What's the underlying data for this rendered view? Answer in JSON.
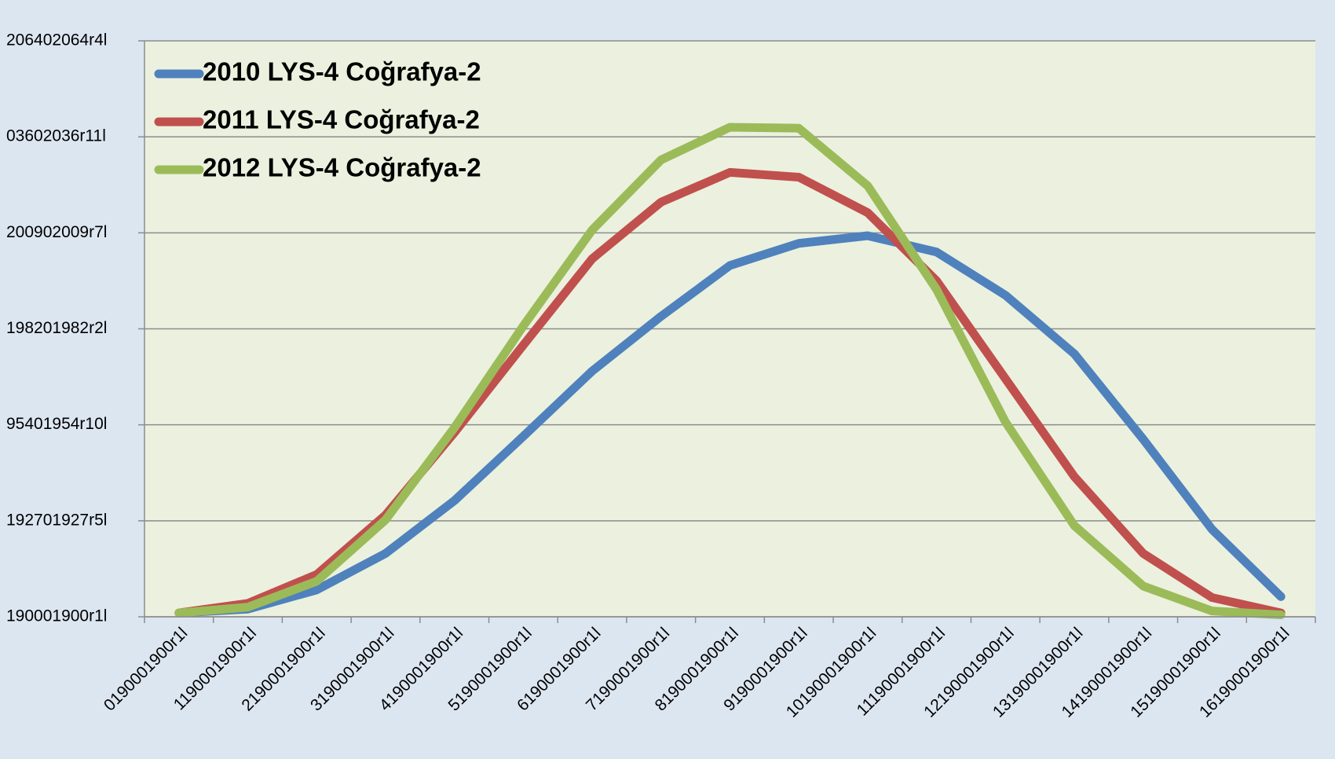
{
  "chart_data": {
    "type": "line",
    "categories": [
      "0190001900r1l",
      "1190001900r1l",
      "2190001900r1l",
      "3190001900r1l",
      "4190001900r1l",
      "5190001900r1l",
      "6190001900r1l",
      "7190001900r1l",
      "8190001900r1l",
      "9190001900r1l",
      "10190001900r1l",
      "11190001900r1l",
      "12190001900r1l",
      "13190001900r1l",
      "14190001900r1l",
      "15190001900r1l",
      "16190001900r1l"
    ],
    "series": [
      {
        "name": "2010 LYS-4 Coğrafya-2",
        "color": "#4f81bd",
        "values": [
          0.04,
          0.08,
          0.28,
          0.66,
          1.21,
          1.88,
          2.56,
          3.13,
          3.66,
          3.89,
          3.97,
          3.8,
          3.35,
          2.74,
          1.85,
          0.91,
          0.21
        ]
      },
      {
        "name": "2011 LYS-4 Coğrafya-2",
        "color": "#c0504d",
        "values": [
          0.04,
          0.14,
          0.44,
          1.06,
          1.92,
          2.83,
          3.73,
          4.32,
          4.63,
          4.58,
          4.21,
          3.5,
          2.48,
          1.46,
          0.66,
          0.2,
          0.04
        ]
      },
      {
        "name": "2012 LYS-4 Coğrafya-2",
        "color": "#9bbb59",
        "values": [
          0.04,
          0.1,
          0.37,
          1.01,
          1.97,
          3.03,
          4.03,
          4.76,
          5.1,
          5.09,
          4.49,
          3.41,
          2.03,
          0.95,
          0.32,
          0.06,
          0.02
        ]
      }
    ],
    "ylim": [
      0,
      6
    ],
    "yticks": [
      {
        "value": 0,
        "label": "190001900r1l"
      },
      {
        "value": 1,
        "label": "192701927r5l"
      },
      {
        "value": 2,
        "label": "95401954r10l"
      },
      {
        "value": 3,
        "label": "198201982r2l"
      },
      {
        "value": 4,
        "label": "200902009r7l"
      },
      {
        "value": 5,
        "label": "03602036r11l"
      },
      {
        "value": 6,
        "label": "206402064r4l"
      }
    ],
    "grid": true,
    "legend": "top-left"
  }
}
